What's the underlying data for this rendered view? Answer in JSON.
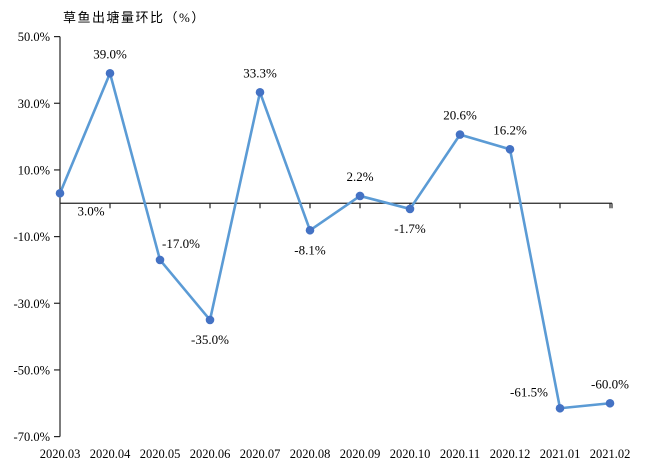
{
  "chart_data": {
    "type": "line",
    "title": "草鱼出塘量环比（%）",
    "categories": [
      "2020.03",
      "2020.04",
      "2020.05",
      "2020.06",
      "2020.07",
      "2020.08",
      "2020.09",
      "2020.10",
      "2020.11",
      "2020.12",
      "2021.01",
      "2021.02"
    ],
    "values": [
      3.0,
      39.0,
      -17.0,
      -35.0,
      33.3,
      -8.1,
      2.2,
      -1.7,
      20.6,
      16.2,
      -61.5,
      -60.0
    ],
    "point_labels": [
      "3.0%",
      "39.0%",
      "-17.0%",
      "-35.0%",
      "33.3%",
      "-8.1%",
      "2.2%",
      "-1.7%",
      "20.6%",
      "16.2%",
      "-61.5%",
      "-60.0%"
    ],
    "label_positions": [
      "below-right",
      "above",
      "above-right",
      "below",
      "above",
      "below",
      "above",
      "below",
      "above",
      "above",
      "above-left",
      "above"
    ],
    "y_tick_labels": [
      "50.0%",
      "30.0%",
      "10.0%",
      "-10.0%",
      "-30.0%",
      "-50.0%",
      "-70.0%"
    ],
    "y_tick_values": [
      50,
      30,
      10,
      -10,
      -30,
      -50,
      -70
    ],
    "ylim": [
      -70,
      50
    ],
    "xlabel": "",
    "ylabel": "",
    "grid": false,
    "legend": "none",
    "line_color": "#5B9BD5",
    "marker_color": "#4472C4",
    "axis_color": "#262626",
    "text_color": "#000000"
  }
}
